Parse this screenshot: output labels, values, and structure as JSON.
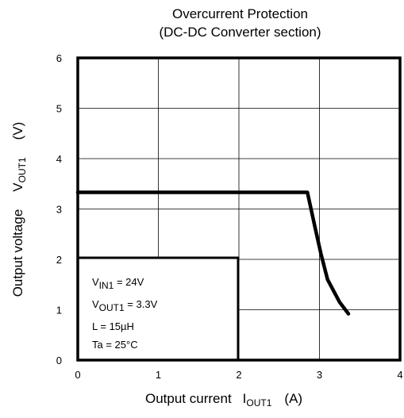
{
  "chart_data": {
    "type": "line",
    "title": "Overcurrent Protection",
    "subtitle": "(DC-DC Converter section)",
    "xlabel": {
      "text": "Output current",
      "symbol": "I",
      "sub": "OUT1",
      "unit": "(A)"
    },
    "ylabel": {
      "text": "Output voltage",
      "symbol": "V",
      "sub": "OUT1",
      "unit": "(V)"
    },
    "xlim": [
      0,
      4
    ],
    "ylim": [
      0,
      6
    ],
    "xticks": [
      "0",
      "1",
      "2",
      "3",
      "4"
    ],
    "yticks": [
      "0",
      "1",
      "2",
      "3",
      "4",
      "5",
      "6"
    ],
    "grid": true,
    "series": [
      {
        "x": [
          0,
          2.85,
          2.95,
          3.02,
          3.1,
          3.25,
          3.36
        ],
        "y": [
          3.33,
          3.33,
          2.6,
          2.1,
          1.6,
          1.15,
          0.92
        ]
      }
    ],
    "annotations": [
      {
        "symbol": "V",
        "sub": "IN1",
        "text": " = 24V"
      },
      {
        "symbol": "V",
        "sub": "OUT1",
        "text": " = 3.3V"
      },
      {
        "symbol": "",
        "sub": "",
        "text": "L = 15µH"
      },
      {
        "symbol": "",
        "sub": "",
        "text": "Ta = 25°C"
      }
    ],
    "colors": {
      "line": "#000000",
      "grid": "#000000"
    }
  }
}
